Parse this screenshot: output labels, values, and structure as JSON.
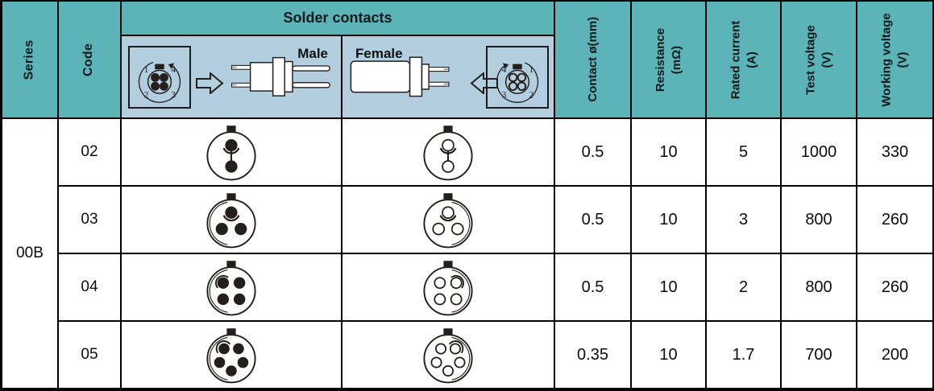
{
  "colors": {
    "header_teal": "#5cb4b9",
    "subheader_blue": "#b3cedf",
    "grid_line": "#000000",
    "cell_bg": "#ffffff",
    "diagram_ink": "#241f1c"
  },
  "header": {
    "series": "Series",
    "code": "Code",
    "solder_contacts": "Solder contacts",
    "male": "Male",
    "female": "Female",
    "metrics": [
      {
        "lines": [
          "Contact ø(mm)",
          ""
        ]
      },
      {
        "lines": [
          "Resistance",
          "(mΩ)"
        ]
      },
      {
        "lines": [
          "Rated current",
          "(A)"
        ]
      },
      {
        "lines": [
          "Test voltage",
          "(V)"
        ]
      },
      {
        "lines": [
          "Working voltage",
          "(V)"
        ]
      }
    ],
    "male_face_numbers": [
      "1",
      "4",
      "2",
      "3"
    ],
    "female_face_numbers": [
      "4",
      "1",
      "3",
      "2"
    ]
  },
  "body": {
    "series_value": "00B",
    "rows": [
      {
        "code": "02",
        "contacts": 2,
        "values": [
          "0.5",
          "10",
          "5",
          "1000",
          "330"
        ]
      },
      {
        "code": "03",
        "contacts": 3,
        "values": [
          "0.5",
          "10",
          "3",
          "800",
          "260"
        ]
      },
      {
        "code": "04",
        "contacts": 4,
        "values": [
          "0.5",
          "10",
          "2",
          "800",
          "260"
        ]
      },
      {
        "code": "05",
        "contacts": 5,
        "values": [
          "0.35",
          "10",
          "1.7",
          "700",
          "200"
        ]
      }
    ]
  },
  "chart_data": {
    "type": "table",
    "title": "Solder contacts — 00B series",
    "columns": [
      "Series",
      "Code",
      "Contact ø(mm)",
      "Resistance (mΩ)",
      "Rated current (A)",
      "Test voltage (V)",
      "Working voltage (V)"
    ],
    "rows": [
      [
        "00B",
        "02",
        0.5,
        10,
        5,
        1000,
        330
      ],
      [
        "00B",
        "03",
        0.5,
        10,
        3,
        800,
        260
      ],
      [
        "00B",
        "04",
        0.5,
        10,
        2,
        800,
        260
      ],
      [
        "00B",
        "05",
        0.35,
        10,
        1.7,
        700,
        200
      ]
    ]
  }
}
